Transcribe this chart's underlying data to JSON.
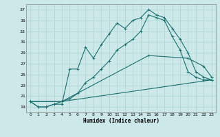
{
  "xlabel": "Humidex (Indice chaleur)",
  "bg_color": "#cce8e8",
  "grid_color": "#aad0d0",
  "line_color": "#1a6e6e",
  "xlim": [
    -0.5,
    23.5
  ],
  "ylim": [
    18,
    38
  ],
  "yticks": [
    19,
    21,
    23,
    25,
    27,
    29,
    31,
    33,
    35,
    37
  ],
  "xticks": [
    0,
    1,
    2,
    3,
    4,
    5,
    6,
    7,
    8,
    9,
    10,
    11,
    12,
    13,
    14,
    15,
    16,
    17,
    18,
    19,
    20,
    21,
    22,
    23
  ],
  "line1_x": [
    0,
    1,
    2,
    3,
    4,
    5,
    6,
    7,
    8,
    9,
    10,
    11,
    12,
    13,
    14,
    15,
    16,
    17,
    18,
    19,
    20,
    21,
    22,
    23
  ],
  "line1_y": [
    20.0,
    19.0,
    19.0,
    19.5,
    19.5,
    26.0,
    26.0,
    30.0,
    28.0,
    30.5,
    32.5,
    34.5,
    33.5,
    35.0,
    35.5,
    37.0,
    36.0,
    35.5,
    33.5,
    31.5,
    29.0,
    25.5,
    24.5,
    24.0
  ],
  "line2_x": [
    0,
    1,
    2,
    3,
    4,
    5,
    6,
    7,
    8,
    9,
    10,
    11,
    12,
    13,
    14,
    15,
    16,
    17,
    18,
    19,
    20,
    21,
    22,
    23
  ],
  "line2_y": [
    20.0,
    19.0,
    19.0,
    19.5,
    20.0,
    20.5,
    21.5,
    23.5,
    24.5,
    26.0,
    27.5,
    29.5,
    30.5,
    31.5,
    33.0,
    36.0,
    35.5,
    35.0,
    32.0,
    29.5,
    25.5,
    24.5,
    24.0,
    24.0
  ],
  "line3_x": [
    0,
    4,
    23
  ],
  "line3_y": [
    20.0,
    20.0,
    24.0
  ],
  "line4_x": [
    0,
    4,
    15,
    20,
    22,
    23
  ],
  "line4_y": [
    20.0,
    20.0,
    28.5,
    28.0,
    26.5,
    24.5
  ]
}
